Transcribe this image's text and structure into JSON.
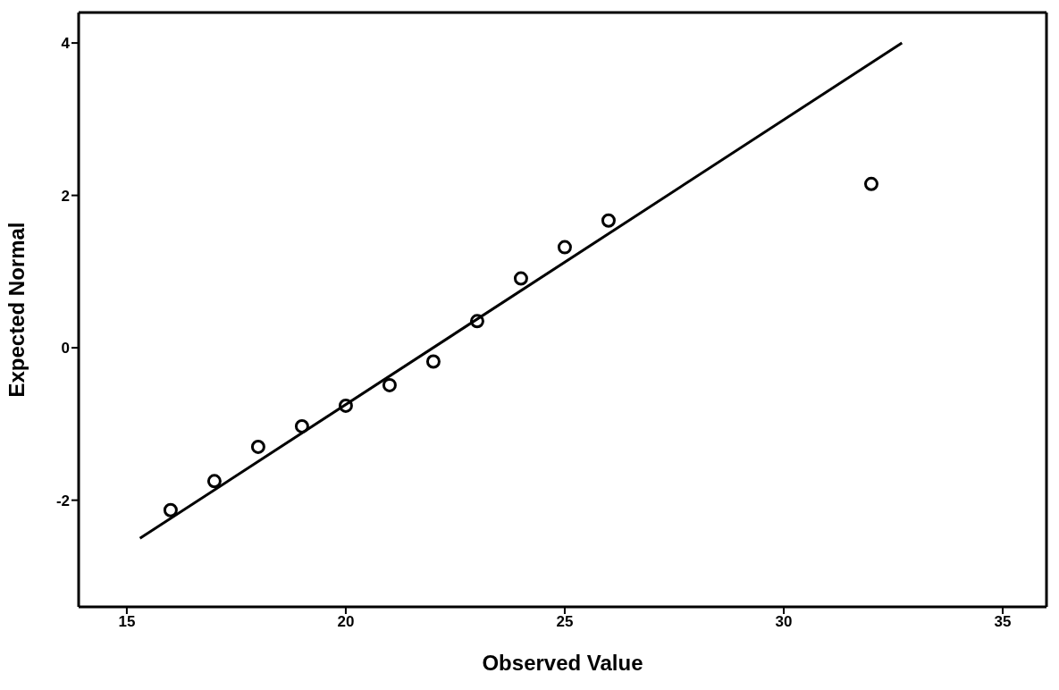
{
  "chart_data": {
    "type": "scatter",
    "xlabel": "Observed Value",
    "ylabel": "Expected Normal",
    "xlim": [
      13.9,
      36
    ],
    "ylim": [
      -3.4,
      4.4
    ],
    "xticks": [
      15,
      20,
      25,
      30,
      35
    ],
    "yticks": [
      -2,
      0,
      2,
      4
    ],
    "grid": false,
    "series": [
      {
        "marker": "circle",
        "color": "#000000",
        "x": [
          16,
          17,
          18,
          19,
          20,
          21,
          22,
          23,
          24,
          25,
          26,
          32
        ],
        "values": [
          -2.13,
          -1.75,
          -1.3,
          -1.03,
          -0.76,
          -0.49,
          -0.18,
          0.35,
          0.91,
          1.32,
          1.67,
          2.15
        ]
      },
      {
        "type": "line",
        "color": "#000000",
        "x": [
          15.3,
          32.7
        ],
        "values": [
          -2.5,
          4.0
        ],
        "line_style": "solid"
      }
    ]
  }
}
